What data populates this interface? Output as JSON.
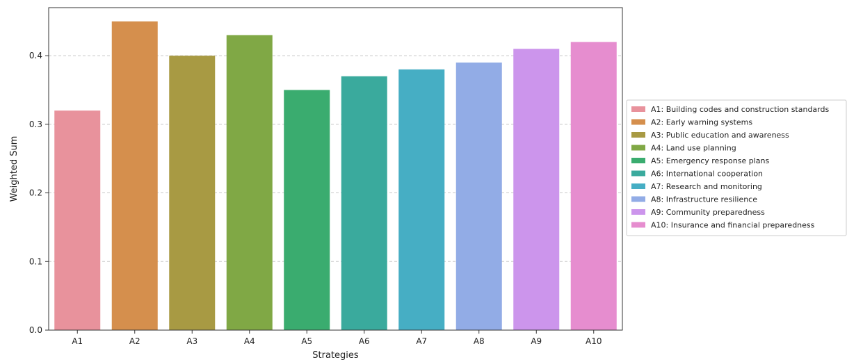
{
  "chart_data": {
    "type": "bar",
    "title": "",
    "xlabel": "Strategies",
    "ylabel": "Weighted Sum",
    "ylim": [
      0,
      0.47
    ],
    "yticks": [
      0.0,
      0.1,
      0.2,
      0.3,
      0.4
    ],
    "ytick_labels": [
      "0.0",
      "0.1",
      "0.2",
      "0.3",
      "0.4"
    ],
    "grid": "horizontal dashed",
    "legend_position": "right, outside plot area",
    "categories": [
      "A1",
      "A2",
      "A3",
      "A4",
      "A5",
      "A6",
      "A7",
      "A8",
      "A9",
      "A10"
    ],
    "values": [
      0.32,
      0.45,
      0.4,
      0.43,
      0.35,
      0.37,
      0.38,
      0.39,
      0.41,
      0.42
    ],
    "colors": [
      "#e8929c",
      "#d58f4d",
      "#a89a43",
      "#80a845",
      "#3aac6f",
      "#3aaa9d",
      "#46aec4",
      "#92ace6",
      "#cc95ec",
      "#e68dcf"
    ],
    "legend": [
      "A1: Building codes and construction standards",
      "A2: Early warning systems",
      "A3: Public education and awareness",
      "A4: Land use planning",
      "A5: Emergency response plans",
      "A6: International cooperation",
      "A7: Research and monitoring",
      "A8: Infrastructure resilience",
      "A9: Community preparedness",
      "A10: Insurance and financial preparedness"
    ]
  }
}
